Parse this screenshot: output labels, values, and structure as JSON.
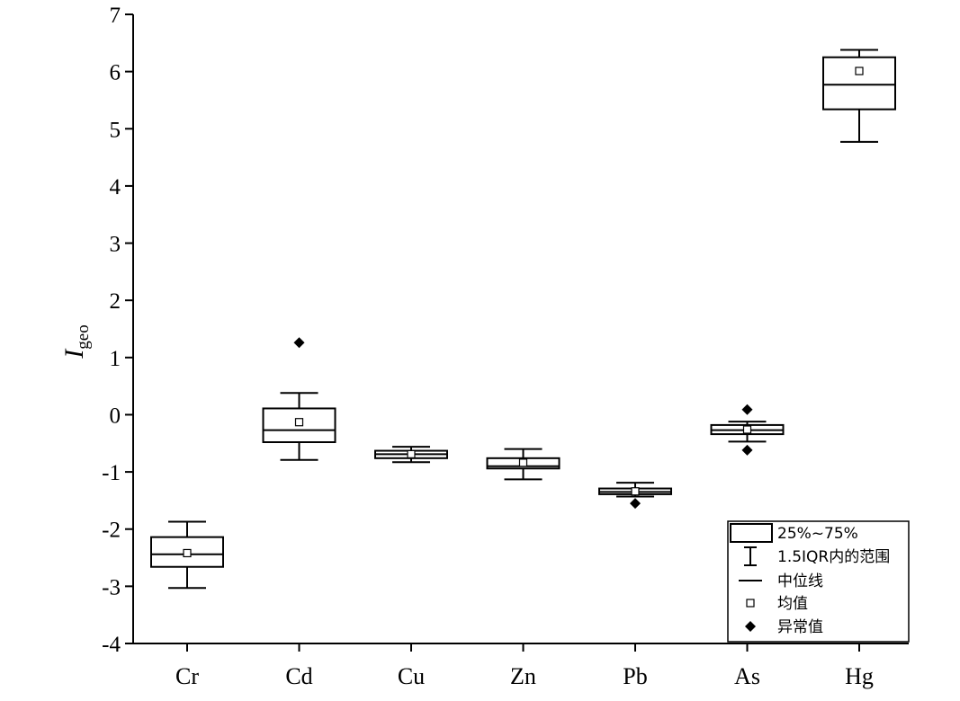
{
  "chart_data": {
    "type": "box",
    "ylabel_main": "I",
    "ylabel_sub": "geo",
    "ylim": [
      -4,
      7
    ],
    "yticks": [
      -4,
      -3,
      -2,
      -1,
      0,
      1,
      2,
      3,
      4,
      5,
      6,
      7
    ],
    "categories": [
      "Cr",
      "Cd",
      "Cu",
      "Zn",
      "Pb",
      "As",
      "Hg"
    ],
    "boxes": [
      {
        "category": "Cr",
        "whisker_low": -3.03,
        "q1": -2.66,
        "median": -2.44,
        "q3": -2.14,
        "whisker_high": -1.87,
        "mean": -2.42,
        "outliers": []
      },
      {
        "category": "Cd",
        "whisker_low": -0.79,
        "q1": -0.48,
        "median": -0.27,
        "q3": 0.11,
        "whisker_high": 0.38,
        "mean": -0.13,
        "outliers": [
          1.26
        ]
      },
      {
        "category": "Cu",
        "whisker_low": -0.83,
        "q1": -0.76,
        "median": -0.69,
        "q3": -0.63,
        "whisker_high": -0.56,
        "mean": -0.69,
        "outliers": []
      },
      {
        "category": "Zn",
        "whisker_low": -1.13,
        "q1": -0.94,
        "median": -0.9,
        "q3": -0.76,
        "whisker_high": -0.6,
        "mean": -0.84,
        "outliers": []
      },
      {
        "category": "Pb",
        "whisker_low": -1.43,
        "q1": -1.39,
        "median": -1.35,
        "q3": -1.29,
        "whisker_high": -1.19,
        "mean": -1.34,
        "outliers": [
          -1.55
        ]
      },
      {
        "category": "As",
        "whisker_low": -0.47,
        "q1": -0.34,
        "median": -0.27,
        "q3": -0.18,
        "whisker_high": -0.12,
        "mean": -0.26,
        "outliers": [
          0.09,
          -0.62
        ]
      },
      {
        "category": "Hg",
        "whisker_low": 4.77,
        "q1": 5.34,
        "median": 5.77,
        "q3": 6.25,
        "whisker_high": 6.38,
        "mean": 6.01,
        "outliers": []
      }
    ],
    "legend": {
      "position": "bottom-right",
      "items": [
        {
          "key": "box",
          "label": "25%~75%"
        },
        {
          "key": "whisker",
          "label": "1.5IQR内的范围"
        },
        {
          "key": "median",
          "label": "中位线"
        },
        {
          "key": "mean",
          "label": "均值"
        },
        {
          "key": "outlier",
          "label": "异常值"
        }
      ]
    }
  }
}
